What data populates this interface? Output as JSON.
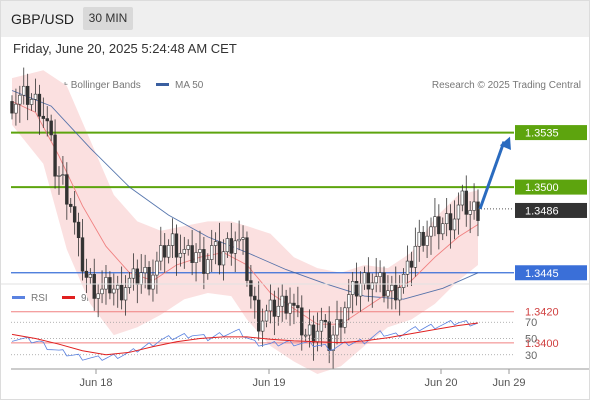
{
  "header": {
    "pair": "GBP/USD",
    "timeframe": "30 MIN"
  },
  "datetime": "Friday, June 20, 2025 5:24:48 AM CET",
  "credit": "Research © 2025 Trading Central",
  "colors": {
    "ma20": "#f08080",
    "ma50": "#3a5fa0",
    "bands_fill": "#fbe0e0",
    "green": "#5da40e",
    "blue_line": "#3a6fd8",
    "red_line": "#f08080",
    "arrow": "#2a6bbf",
    "price_box": "#333333",
    "rsi": "#5a82e0",
    "rsi_ma": "#e02020"
  },
  "chart_data": [
    {
      "type": "candlestick",
      "title": "GBP/USD",
      "legend": [
        "MA 20 + Bollinger Bands",
        "MA 50"
      ],
      "legend_placement": "top-left",
      "ylim": [
        1.338,
        1.358
      ],
      "current_price": "1.3486",
      "levels": [
        {
          "value": 1.3535,
          "label": "1.3535",
          "kind": "green-box"
        },
        {
          "value": 1.35,
          "label": "1.3500",
          "kind": "green-box"
        },
        {
          "value": 1.3445,
          "label": "1.3445",
          "kind": "blue-box"
        },
        {
          "value": 1.342,
          "label": "1.3420",
          "kind": "red-text"
        },
        {
          "value": 1.34,
          "label": "1.3400",
          "kind": "red-text"
        }
      ],
      "xticks": [
        "Jun 18",
        "Jun 19",
        "Jun 20",
        "Jun 29"
      ],
      "forecast_arrow": {
        "from": 1.3486,
        "to": 1.3535
      },
      "close_path": [
        [
          0,
          1.3555
        ],
        [
          4,
          1.3558
        ],
        [
          7,
          1.3553
        ],
        [
          9,
          1.354
        ],
        [
          11,
          1.3512
        ],
        [
          13,
          1.3503
        ],
        [
          15,
          1.349
        ],
        [
          17,
          1.346
        ],
        [
          19,
          1.3442
        ],
        [
          21,
          1.3436
        ],
        [
          23,
          1.3432
        ],
        [
          25,
          1.3437
        ],
        [
          27,
          1.3432
        ],
        [
          29,
          1.3438
        ],
        [
          31,
          1.344
        ],
        [
          33,
          1.3445
        ],
        [
          35,
          1.3442
        ],
        [
          37,
          1.345
        ],
        [
          39,
          1.346
        ],
        [
          41,
          1.3465
        ],
        [
          43,
          1.346
        ],
        [
          45,
          1.3455
        ],
        [
          47,
          1.3458
        ],
        [
          49,
          1.3452
        ],
        [
          51,
          1.346
        ],
        [
          53,
          1.3455
        ],
        [
          55,
          1.3462
        ],
        [
          57,
          1.3468
        ],
        [
          59,
          1.346
        ],
        [
          61,
          1.343
        ],
        [
          63,
          1.3415
        ],
        [
          65,
          1.3418
        ],
        [
          67,
          1.3422
        ],
        [
          69,
          1.3425
        ],
        [
          71,
          1.3428
        ],
        [
          73,
          1.3415
        ],
        [
          75,
          1.3405
        ],
        [
          77,
          1.3408
        ],
        [
          79,
          1.3412
        ],
        [
          81,
          1.34
        ],
        [
          83,
          1.341
        ],
        [
          85,
          1.3425
        ],
        [
          87,
          1.3432
        ],
        [
          89,
          1.3438
        ],
        [
          91,
          1.3442
        ],
        [
          93,
          1.344
        ],
        [
          95,
          1.3435
        ],
        [
          97,
          1.3432
        ],
        [
          99,
          1.3438
        ],
        [
          101,
          1.3445
        ],
        [
          103,
          1.3462
        ],
        [
          105,
          1.347
        ],
        [
          107,
          1.3472
        ],
        [
          109,
          1.3475
        ],
        [
          111,
          1.3478
        ],
        [
          113,
          1.3482
        ],
        [
          115,
          1.349
        ],
        [
          117,
          1.3485
        ],
        [
          119,
          1.3486
        ]
      ],
      "ma20": [
        [
          0,
          1.3555
        ],
        [
          6,
          1.3548
        ],
        [
          12,
          1.352
        ],
        [
          18,
          1.3488
        ],
        [
          24,
          1.3462
        ],
        [
          30,
          1.3445
        ],
        [
          36,
          1.344
        ],
        [
          42,
          1.345
        ],
        [
          48,
          1.3455
        ],
        [
          54,
          1.3458
        ],
        [
          60,
          1.345
        ],
        [
          66,
          1.3432
        ],
        [
          72,
          1.3422
        ],
        [
          78,
          1.3412
        ],
        [
          84,
          1.3412
        ],
        [
          90,
          1.3422
        ],
        [
          96,
          1.3432
        ],
        [
          102,
          1.344
        ],
        [
          108,
          1.3455
        ],
        [
          114,
          1.3468
        ],
        [
          119,
          1.3476
        ]
      ],
      "ma50": [
        [
          0,
          1.3562
        ],
        [
          10,
          1.3552
        ],
        [
          20,
          1.3525
        ],
        [
          30,
          1.35
        ],
        [
          40,
          1.3482
        ],
        [
          50,
          1.3468
        ],
        [
          60,
          1.3458
        ],
        [
          70,
          1.3447
        ],
        [
          80,
          1.3438
        ],
        [
          90,
          1.343
        ],
        [
          100,
          1.3428
        ],
        [
          110,
          1.3435
        ],
        [
          119,
          1.3445
        ]
      ],
      "bb_upper": [
        [
          0,
          1.357
        ],
        [
          8,
          1.3575
        ],
        [
          14,
          1.3565
        ],
        [
          20,
          1.353
        ],
        [
          26,
          1.3495
        ],
        [
          32,
          1.3478
        ],
        [
          38,
          1.3472
        ],
        [
          44,
          1.3475
        ],
        [
          50,
          1.3478
        ],
        [
          56,
          1.3478
        ],
        [
          60,
          1.3475
        ],
        [
          66,
          1.347
        ],
        [
          72,
          1.3455
        ],
        [
          78,
          1.3448
        ],
        [
          84,
          1.3445
        ],
        [
          90,
          1.345
        ],
        [
          96,
          1.3448
        ],
        [
          102,
          1.3458
        ],
        [
          108,
          1.348
        ],
        [
          114,
          1.3495
        ],
        [
          119,
          1.3498
        ]
      ],
      "bb_lower": [
        [
          0,
          1.354
        ],
        [
          8,
          1.3515
        ],
        [
          14,
          1.346
        ],
        [
          20,
          1.3425
        ],
        [
          26,
          1.3405
        ],
        [
          32,
          1.341
        ],
        [
          38,
          1.3418
        ],
        [
          44,
          1.3428
        ],
        [
          50,
          1.3432
        ],
        [
          56,
          1.343
        ],
        [
          60,
          1.3415
        ],
        [
          66,
          1.3398
        ],
        [
          72,
          1.3388
        ],
        [
          78,
          1.338
        ],
        [
          84,
          1.3385
        ],
        [
          90,
          1.3398
        ],
        [
          96,
          1.341
        ],
        [
          102,
          1.3415
        ],
        [
          108,
          1.3425
        ],
        [
          114,
          1.344
        ],
        [
          119,
          1.345
        ]
      ]
    },
    {
      "type": "line",
      "title": "RSI",
      "legend": [
        "RSI",
        "9MA"
      ],
      "legend_placement": "top-left",
      "ylim": [
        15,
        85
      ],
      "yticks": [
        70,
        50,
        30
      ],
      "rsi": [
        [
          0,
          50
        ],
        [
          4,
          48
        ],
        [
          7,
          46
        ],
        [
          9,
          40
        ],
        [
          12,
          34
        ],
        [
          15,
          30
        ],
        [
          18,
          27
        ],
        [
          22,
          25
        ],
        [
          26,
          28
        ],
        [
          30,
          32
        ],
        [
          34,
          40
        ],
        [
          38,
          48
        ],
        [
          42,
          52
        ],
        [
          46,
          55
        ],
        [
          50,
          50
        ],
        [
          54,
          56
        ],
        [
          58,
          58
        ],
        [
          62,
          45
        ],
        [
          66,
          42
        ],
        [
          70,
          45
        ],
        [
          74,
          44
        ],
        [
          78,
          42
        ],
        [
          82,
          38
        ],
        [
          86,
          44
        ],
        [
          90,
          47
        ],
        [
          94,
          56
        ],
        [
          98,
          54
        ],
        [
          102,
          60
        ],
        [
          106,
          64
        ],
        [
          110,
          67
        ],
        [
          114,
          70
        ],
        [
          117,
          69
        ],
        [
          119,
          69
        ]
      ],
      "rsi_ma": [
        [
          0,
          55
        ],
        [
          6,
          50
        ],
        [
          12,
          43
        ],
        [
          18,
          35
        ],
        [
          24,
          30
        ],
        [
          30,
          33
        ],
        [
          36,
          40
        ],
        [
          42,
          46
        ],
        [
          48,
          50
        ],
        [
          54,
          52
        ],
        [
          60,
          52
        ],
        [
          66,
          49
        ],
        [
          72,
          47
        ],
        [
          78,
          46
        ],
        [
          84,
          45
        ],
        [
          90,
          47
        ],
        [
          96,
          51
        ],
        [
          102,
          56
        ],
        [
          108,
          61
        ],
        [
          114,
          66
        ],
        [
          119,
          69
        ]
      ]
    }
  ]
}
